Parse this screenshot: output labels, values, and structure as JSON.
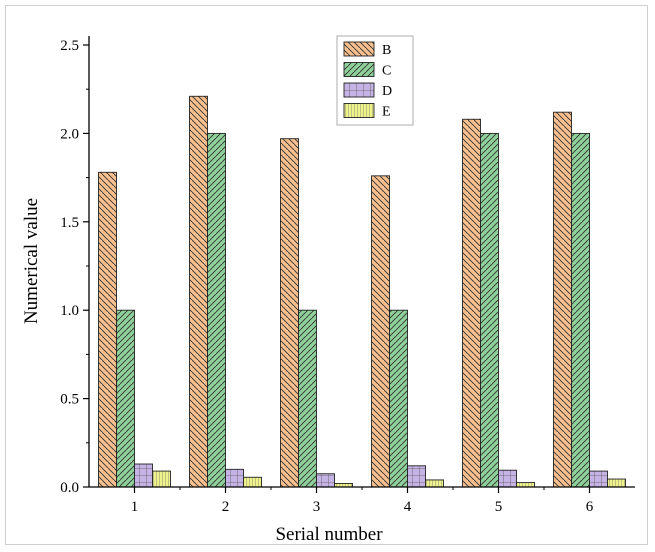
{
  "chart_data": {
    "type": "bar",
    "title": "",
    "xlabel": "Serial number",
    "ylabel": "Numerical value",
    "ylim": [
      0,
      2.5
    ],
    "yticks": [
      "0.0",
      "0.5",
      "1.0",
      "1.5",
      "2.0",
      "2.5"
    ],
    "categories": [
      "1",
      "2",
      "3",
      "4",
      "5",
      "6"
    ],
    "grid": false,
    "legend_position": "top-center",
    "series": [
      {
        "name": "B",
        "values": [
          1.78,
          2.21,
          1.97,
          1.76,
          2.08,
          2.12
        ],
        "color": "#f9c08f",
        "pattern": "diagonal-backslash"
      },
      {
        "name": "C",
        "values": [
          1.0,
          2.0,
          1.0,
          1.0,
          2.0,
          2.0
        ],
        "color": "#8fd19a",
        "pattern": "diagonal-slash"
      },
      {
        "name": "D",
        "values": [
          0.13,
          0.1,
          0.075,
          0.12,
          0.095,
          0.09
        ],
        "color": "#c5b3e6",
        "pattern": "grid"
      },
      {
        "name": "E",
        "values": [
          0.09,
          0.055,
          0.02,
          0.04,
          0.025,
          0.045
        ],
        "color": "#eef28a",
        "pattern": "vertical"
      }
    ]
  }
}
